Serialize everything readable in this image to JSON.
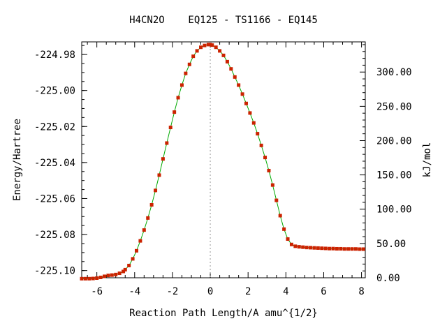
{
  "chart_data": {
    "type": "line",
    "title": "H4CN2O    EQ125 - TS1166 - EQ145",
    "xlabel": "Reaction Path Length/A amu^{1/2}",
    "ylabel": "Energy/Hartree",
    "y2label": "kJ/mol",
    "xlim": [
      -6.8,
      8.2
    ],
    "ylim": [
      -225.104,
      -224.973
    ],
    "y2lim": [
      0,
      344
    ],
    "x_ticks": [
      "-6",
      "-4",
      "-2",
      "0",
      "2",
      "4",
      "6",
      "8"
    ],
    "x_tick_values": [
      -6,
      -4,
      -2,
      0,
      2,
      4,
      6,
      8
    ],
    "y_ticks": [
      "-224.98",
      "-225.00",
      "-225.02",
      "-225.04",
      "-225.06",
      "-225.08",
      "-225.10"
    ],
    "y_tick_values": [
      -224.98,
      -225.0,
      -225.02,
      -225.04,
      -225.06,
      -225.08,
      -225.1
    ],
    "y2_ticks": [
      "300.00",
      "250.00",
      "200.00",
      "150.00",
      "100.00",
      "50.00",
      "0.00"
    ],
    "y2_tick_values": [
      300,
      250,
      200,
      150,
      100,
      50,
      0
    ],
    "ts_x": 0,
    "grid": false,
    "legend": "none",
    "line_color": "#00aa00",
    "marker_color": "#cc2200",
    "ts_line_color": "#999999",
    "series": [
      {
        "x": [
          -6.8,
          -6.6,
          -6.4,
          -6.2,
          -6.0,
          -5.8,
          -5.6,
          -5.4,
          -5.2,
          -5.0,
          -4.8,
          -4.6,
          -4.5,
          -4.3,
          -4.1,
          -3.9,
          -3.7,
          -3.5,
          -3.3,
          -3.1,
          -2.9,
          -2.7,
          -2.5,
          -2.3,
          -2.1,
          -1.9,
          -1.7,
          -1.5,
          -1.3,
          -1.1,
          -0.9,
          -0.7,
          -0.5,
          -0.3,
          -0.1,
          0.0,
          0.1,
          0.3,
          0.5,
          0.7,
          0.9,
          1.1,
          1.3,
          1.5,
          1.7,
          1.9,
          2.1,
          2.3,
          2.5,
          2.7,
          2.9,
          3.1,
          3.3,
          3.5,
          3.7,
          3.9,
          4.1,
          4.3,
          4.5,
          4.7,
          4.9,
          5.1,
          5.3,
          5.5,
          5.7,
          5.9,
          6.1,
          6.3,
          6.5,
          6.7,
          6.9,
          7.1,
          7.3,
          7.5,
          7.7,
          7.9,
          8.1
        ],
        "y": [
          -225.1045,
          -225.1045,
          -225.1045,
          -225.1044,
          -225.1042,
          -225.1038,
          -225.1032,
          -225.1027,
          -225.1025,
          -225.1022,
          -225.1015,
          -225.1005,
          -225.0995,
          -225.0972,
          -225.0935,
          -225.089,
          -225.0835,
          -225.0775,
          -225.0708,
          -225.0635,
          -225.0555,
          -225.047,
          -225.038,
          -225.0292,
          -225.0205,
          -225.012,
          -225.004,
          -224.997,
          -224.9905,
          -224.9855,
          -224.981,
          -224.978,
          -224.976,
          -224.975,
          -224.9745,
          -224.9745,
          -224.9748,
          -224.976,
          -224.978,
          -224.9805,
          -224.984,
          -224.988,
          -224.9925,
          -224.997,
          -225.002,
          -225.0072,
          -225.0125,
          -225.018,
          -225.024,
          -225.0305,
          -225.0372,
          -225.0445,
          -225.0525,
          -225.061,
          -225.0695,
          -225.077,
          -225.0825,
          -225.0855,
          -225.0865,
          -225.0868,
          -225.087,
          -225.0872,
          -225.0873,
          -225.0874,
          -225.0875,
          -225.0876,
          -225.0877,
          -225.0878,
          -225.0878,
          -225.0879,
          -225.0879,
          -225.088,
          -225.088,
          -225.088,
          -225.088,
          -225.0881,
          -225.0881
        ]
      }
    ]
  }
}
